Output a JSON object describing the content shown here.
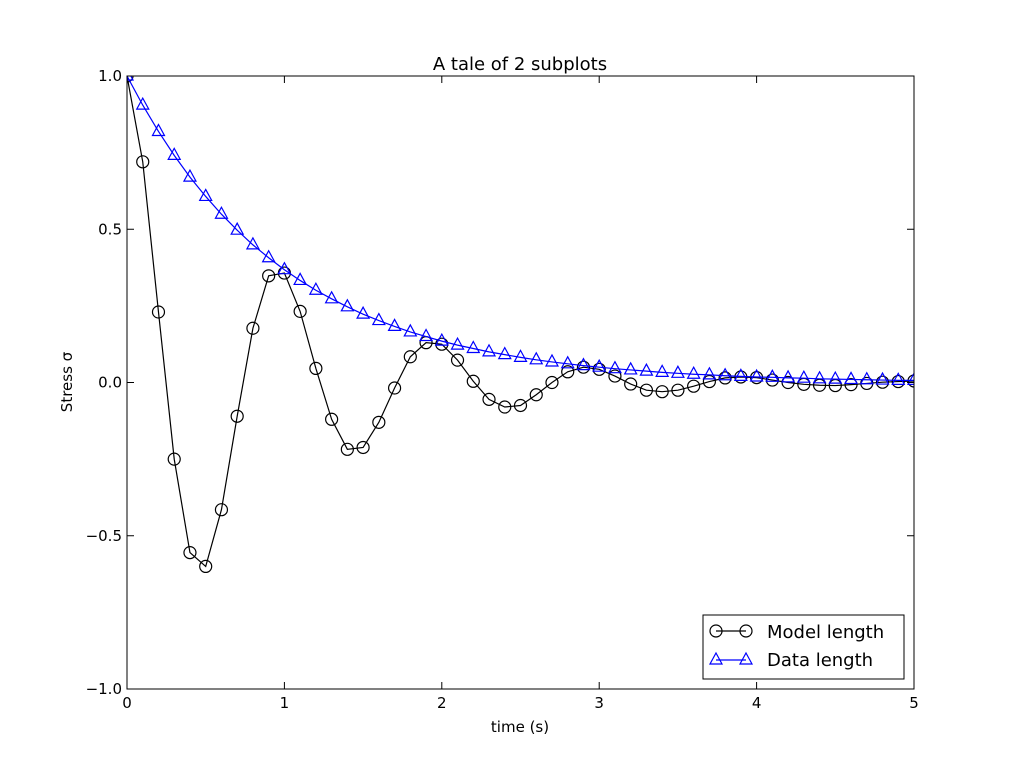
{
  "chart_data": {
    "type": "line",
    "title": "A tale of 2 subplots",
    "xlabel": "time (s)",
    "ylabel": "Stress σ",
    "xlim": [
      0,
      5
    ],
    "ylim": [
      -1.0,
      1.0
    ],
    "xticks": [
      0,
      1,
      2,
      3,
      4,
      5
    ],
    "xtick_labels": [
      "0",
      "1",
      "2",
      "3",
      "4",
      "5"
    ],
    "yticks": [
      -1.0,
      -0.5,
      0.0,
      0.5,
      1.0
    ],
    "ytick_labels": [
      "−1.0",
      "−0.5",
      "0.0",
      "0.5",
      "1.0"
    ],
    "grid": false,
    "legend_position": "lower-right",
    "x": [
      0.0,
      0.1,
      0.2,
      0.3,
      0.4,
      0.5,
      0.6,
      0.7,
      0.8,
      0.9,
      1.0,
      1.1,
      1.2,
      1.3,
      1.4,
      1.5,
      1.6,
      1.7,
      1.8,
      1.9,
      2.0,
      2.1,
      2.2,
      2.3,
      2.4,
      2.5,
      2.6,
      2.7,
      2.8,
      2.9,
      3.0,
      3.1,
      3.2,
      3.3,
      3.4,
      3.5,
      3.6,
      3.7,
      3.8,
      3.9,
      4.0,
      4.1,
      4.2,
      4.3,
      4.4,
      4.5,
      4.6,
      4.7,
      4.8,
      4.9,
      5.0
    ],
    "series": [
      {
        "name": "Model length",
        "color": "#000000",
        "marker": "circle",
        "values": [
          1.0,
          0.72,
          0.23,
          -0.25,
          -0.555,
          -0.6,
          -0.415,
          -0.11,
          0.177,
          0.348,
          0.357,
          0.232,
          0.046,
          -0.12,
          -0.218,
          -0.212,
          -0.13,
          -0.018,
          0.084,
          0.13,
          0.125,
          0.073,
          0.004,
          -0.055,
          -0.08,
          -0.075,
          -0.04,
          0.0,
          0.035,
          0.05,
          0.043,
          0.021,
          -0.005,
          -0.025,
          -0.03,
          -0.025,
          -0.012,
          0.003,
          0.015,
          0.018,
          0.016,
          0.008,
          0.0,
          -0.006,
          -0.009,
          -0.01,
          -0.007,
          -0.003,
          0.001,
          0.003,
          0.005
        ]
      },
      {
        "name": "Data length",
        "color": "#0000ff",
        "marker": "triangle",
        "values": [
          1.0,
          0.905,
          0.819,
          0.741,
          0.67,
          0.607,
          0.549,
          0.497,
          0.449,
          0.407,
          0.368,
          0.333,
          0.301,
          0.273,
          0.247,
          0.223,
          0.202,
          0.183,
          0.165,
          0.15,
          0.135,
          0.122,
          0.111,
          0.1,
          0.091,
          0.082,
          0.074,
          0.067,
          0.061,
          0.055,
          0.05,
          0.045,
          0.041,
          0.037,
          0.033,
          0.03,
          0.027,
          0.025,
          0.022,
          0.02,
          0.018,
          0.017,
          0.015,
          0.014,
          0.012,
          0.011,
          0.01,
          0.009,
          0.008,
          0.007,
          0.007
        ]
      }
    ]
  }
}
